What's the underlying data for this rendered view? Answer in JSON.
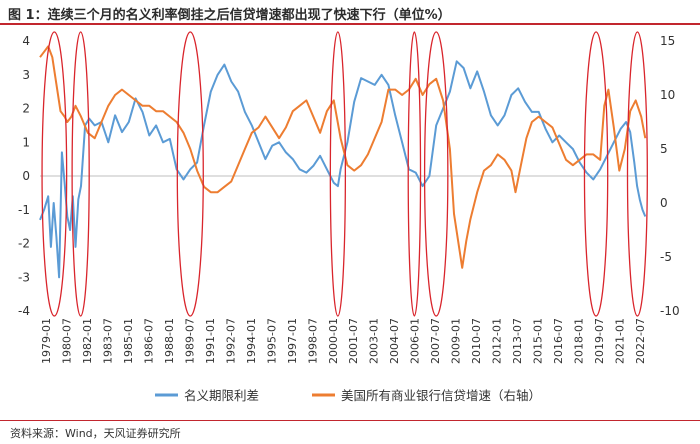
{
  "header": {
    "title": "图 1：连续三个月的名义利率倒挂之后信贷增速都出现了快速下行（单位%）"
  },
  "footer": {
    "source": "资料来源：Wind，天风证券研究所"
  },
  "colors": {
    "spread": "#5b9bd5",
    "loan": "#ed7d31",
    "highlight": "#d9252c",
    "accent_rule": "#c2262e"
  },
  "chart_data": {
    "type": "line",
    "title": "",
    "x_tick_labels": [
      "1979-01",
      "1980-07",
      "1982-01",
      "1983-07",
      "1985-01",
      "1986-07",
      "1988-01",
      "1989-07",
      "1991-01",
      "1992-07",
      "1994-01",
      "1995-07",
      "1997-01",
      "1998-07",
      "2000-01",
      "2001-07",
      "2003-01",
      "2004-07",
      "2006-01",
      "2007-07",
      "2009-01",
      "2010-07",
      "2012-01",
      "2013-07",
      "2015-01",
      "2016-07",
      "2018-01",
      "2019-07",
      "2021-01",
      "2022-07"
    ],
    "x_range": [
      1979.0,
      2023.5
    ],
    "y_left": {
      "range": [
        -4,
        4
      ],
      "ticks": [
        -4,
        -3,
        -2,
        -1,
        0,
        1,
        2,
        3,
        4
      ]
    },
    "y_right": {
      "range": [
        -10,
        15
      ],
      "ticks": [
        -10,
        -5,
        0,
        5,
        10,
        15
      ]
    },
    "series": [
      {
        "name": "名义期限利差",
        "axis": "left",
        "points": [
          [
            1979.0,
            -1.3
          ],
          [
            1979.3,
            -1.0
          ],
          [
            1979.6,
            -0.6
          ],
          [
            1979.8,
            -2.1
          ],
          [
            1980.0,
            -0.8
          ],
          [
            1980.2,
            -1.8
          ],
          [
            1980.4,
            -3.0
          ],
          [
            1980.6,
            0.7
          ],
          [
            1980.8,
            -0.2
          ],
          [
            1981.0,
            -1.2
          ],
          [
            1981.2,
            -1.6
          ],
          [
            1981.4,
            -0.6
          ],
          [
            1981.6,
            -2.1
          ],
          [
            1981.8,
            -0.7
          ],
          [
            1982.0,
            -0.3
          ],
          [
            1982.3,
            1.5
          ],
          [
            1982.6,
            1.7
          ],
          [
            1983.0,
            1.5
          ],
          [
            1983.5,
            1.6
          ],
          [
            1984.0,
            1.0
          ],
          [
            1984.5,
            1.8
          ],
          [
            1985.0,
            1.3
          ],
          [
            1985.5,
            1.6
          ],
          [
            1986.0,
            2.3
          ],
          [
            1986.5,
            1.9
          ],
          [
            1987.0,
            1.2
          ],
          [
            1987.5,
            1.5
          ],
          [
            1988.0,
            1.0
          ],
          [
            1988.5,
            1.1
          ],
          [
            1989.0,
            0.2
          ],
          [
            1989.5,
            -0.1
          ],
          [
            1990.0,
            0.2
          ],
          [
            1990.5,
            0.4
          ],
          [
            1991.0,
            1.5
          ],
          [
            1991.5,
            2.5
          ],
          [
            1992.0,
            3.0
          ],
          [
            1992.5,
            3.3
          ],
          [
            1993.0,
            2.8
          ],
          [
            1993.5,
            2.5
          ],
          [
            1994.0,
            1.9
          ],
          [
            1994.5,
            1.5
          ],
          [
            1995.0,
            1.0
          ],
          [
            1995.5,
            0.5
          ],
          [
            1996.0,
            0.9
          ],
          [
            1996.5,
            1.0
          ],
          [
            1997.0,
            0.7
          ],
          [
            1997.5,
            0.5
          ],
          [
            1998.0,
            0.2
          ],
          [
            1998.5,
            0.1
          ],
          [
            1999.0,
            0.3
          ],
          [
            1999.5,
            0.6
          ],
          [
            2000.0,
            0.2
          ],
          [
            2000.5,
            -0.2
          ],
          [
            2000.8,
            -0.3
          ],
          [
            2001.0,
            0.2
          ],
          [
            2001.5,
            1.0
          ],
          [
            2002.0,
            2.2
          ],
          [
            2002.5,
            2.9
          ],
          [
            2003.0,
            2.8
          ],
          [
            2003.5,
            2.7
          ],
          [
            2004.0,
            3.0
          ],
          [
            2004.5,
            2.7
          ],
          [
            2005.0,
            1.8
          ],
          [
            2005.5,
            1.0
          ],
          [
            2006.0,
            0.2
          ],
          [
            2006.5,
            0.1
          ],
          [
            2007.0,
            -0.3
          ],
          [
            2007.5,
            0.0
          ],
          [
            2008.0,
            1.5
          ],
          [
            2008.5,
            2.0
          ],
          [
            2009.0,
            2.5
          ],
          [
            2009.5,
            3.4
          ],
          [
            2010.0,
            3.2
          ],
          [
            2010.5,
            2.6
          ],
          [
            2011.0,
            3.1
          ],
          [
            2011.5,
            2.5
          ],
          [
            2012.0,
            1.8
          ],
          [
            2012.5,
            1.5
          ],
          [
            2013.0,
            1.8
          ],
          [
            2013.5,
            2.4
          ],
          [
            2014.0,
            2.6
          ],
          [
            2014.5,
            2.2
          ],
          [
            2015.0,
            1.9
          ],
          [
            2015.5,
            1.9
          ],
          [
            2016.0,
            1.4
          ],
          [
            2016.5,
            1.0
          ],
          [
            2017.0,
            1.2
          ],
          [
            2017.5,
            1.0
          ],
          [
            2018.0,
            0.8
          ],
          [
            2018.5,
            0.4
          ],
          [
            2019.0,
            0.1
          ],
          [
            2019.5,
            -0.1
          ],
          [
            2020.0,
            0.2
          ],
          [
            2020.5,
            0.6
          ],
          [
            2021.0,
            1.0
          ],
          [
            2021.5,
            1.4
          ],
          [
            2021.9,
            1.6
          ],
          [
            2022.2,
            1.3
          ],
          [
            2022.5,
            0.4
          ],
          [
            2022.7,
            -0.3
          ],
          [
            2022.9,
            -0.7
          ],
          [
            2023.1,
            -1.0
          ],
          [
            2023.3,
            -1.2
          ]
        ]
      },
      {
        "name": "美国所有商业银行信贷增速（右轴）",
        "axis": "right",
        "points": [
          [
            1979.0,
            13.5
          ],
          [
            1979.3,
            14.0
          ],
          [
            1979.6,
            14.5
          ],
          [
            1979.9,
            13.5
          ],
          [
            1980.2,
            11.0
          ],
          [
            1980.5,
            8.5
          ],
          [
            1980.8,
            8.0
          ],
          [
            1981.0,
            7.5
          ],
          [
            1981.3,
            8.0
          ],
          [
            1981.6,
            9.0
          ],
          [
            1982.0,
            8.0
          ],
          [
            1982.5,
            6.5
          ],
          [
            1983.0,
            6.0
          ],
          [
            1983.5,
            7.5
          ],
          [
            1984.0,
            9.0
          ],
          [
            1984.5,
            10.0
          ],
          [
            1985.0,
            10.5
          ],
          [
            1985.5,
            10.0
          ],
          [
            1986.0,
            9.5
          ],
          [
            1986.5,
            9.0
          ],
          [
            1987.0,
            9.0
          ],
          [
            1987.5,
            8.5
          ],
          [
            1988.0,
            8.5
          ],
          [
            1988.5,
            8.0
          ],
          [
            1989.0,
            7.5
          ],
          [
            1989.5,
            6.5
          ],
          [
            1990.0,
            5.0
          ],
          [
            1990.5,
            3.0
          ],
          [
            1991.0,
            1.5
          ],
          [
            1991.5,
            1.0
          ],
          [
            1992.0,
            1.0
          ],
          [
            1992.5,
            1.5
          ],
          [
            1993.0,
            2.0
          ],
          [
            1993.5,
            3.5
          ],
          [
            1994.0,
            5.0
          ],
          [
            1994.5,
            6.5
          ],
          [
            1995.0,
            7.0
          ],
          [
            1995.5,
            8.0
          ],
          [
            1996.0,
            7.0
          ],
          [
            1996.5,
            6.0
          ],
          [
            1997.0,
            7.0
          ],
          [
            1997.5,
            8.5
          ],
          [
            1998.0,
            9.0
          ],
          [
            1998.5,
            9.5
          ],
          [
            1999.0,
            8.0
          ],
          [
            1999.5,
            6.5
          ],
          [
            2000.0,
            8.5
          ],
          [
            2000.5,
            9.5
          ],
          [
            2001.0,
            6.0
          ],
          [
            2001.5,
            3.5
          ],
          [
            2002.0,
            3.0
          ],
          [
            2002.5,
            3.5
          ],
          [
            2003.0,
            4.5
          ],
          [
            2003.5,
            6.0
          ],
          [
            2004.0,
            7.5
          ],
          [
            2004.5,
            10.5
          ],
          [
            2005.0,
            10.5
          ],
          [
            2005.5,
            10.0
          ],
          [
            2006.0,
            10.5
          ],
          [
            2006.5,
            11.5
          ],
          [
            2007.0,
            10.0
          ],
          [
            2007.5,
            11.0
          ],
          [
            2008.0,
            11.5
          ],
          [
            2008.5,
            9.5
          ],
          [
            2009.0,
            5.0
          ],
          [
            2009.3,
            -1.0
          ],
          [
            2009.6,
            -3.5
          ],
          [
            2009.9,
            -6.0
          ],
          [
            2010.2,
            -3.5
          ],
          [
            2010.5,
            -1.5
          ],
          [
            2011.0,
            1.0
          ],
          [
            2011.5,
            3.0
          ],
          [
            2012.0,
            3.5
          ],
          [
            2012.5,
            4.5
          ],
          [
            2013.0,
            4.0
          ],
          [
            2013.5,
            3.0
          ],
          [
            2013.8,
            1.0
          ],
          [
            2014.2,
            3.5
          ],
          [
            2014.6,
            6.0
          ],
          [
            2015.0,
            7.5
          ],
          [
            2015.5,
            8.0
          ],
          [
            2016.0,
            7.5
          ],
          [
            2016.5,
            7.0
          ],
          [
            2017.0,
            5.5
          ],
          [
            2017.5,
            4.0
          ],
          [
            2018.0,
            3.5
          ],
          [
            2018.5,
            4.0
          ],
          [
            2019.0,
            4.5
          ],
          [
            2019.5,
            4.5
          ],
          [
            2020.0,
            4.0
          ],
          [
            2020.3,
            9.0
          ],
          [
            2020.6,
            10.5
          ],
          [
            2021.0,
            7.0
          ],
          [
            2021.4,
            3.0
          ],
          [
            2021.8,
            5.0
          ],
          [
            2022.2,
            8.5
          ],
          [
            2022.6,
            9.5
          ],
          [
            2023.0,
            8.0
          ],
          [
            2023.3,
            6.0
          ]
        ]
      }
    ],
    "highlight_periods": [
      [
        1979.15,
        1980.95
      ],
      [
        1981.35,
        1982.6
      ],
      [
        1989.05,
        1990.95
      ],
      [
        2000.25,
        2001.35
      ],
      [
        2005.95,
        2006.85
      ],
      [
        2007.15,
        2008.85
      ],
      [
        2018.85,
        2020.55
      ],
      [
        2022.0,
        2023.45
      ]
    ],
    "legend": {
      "placement": "bottom"
    },
    "grid": false
  }
}
